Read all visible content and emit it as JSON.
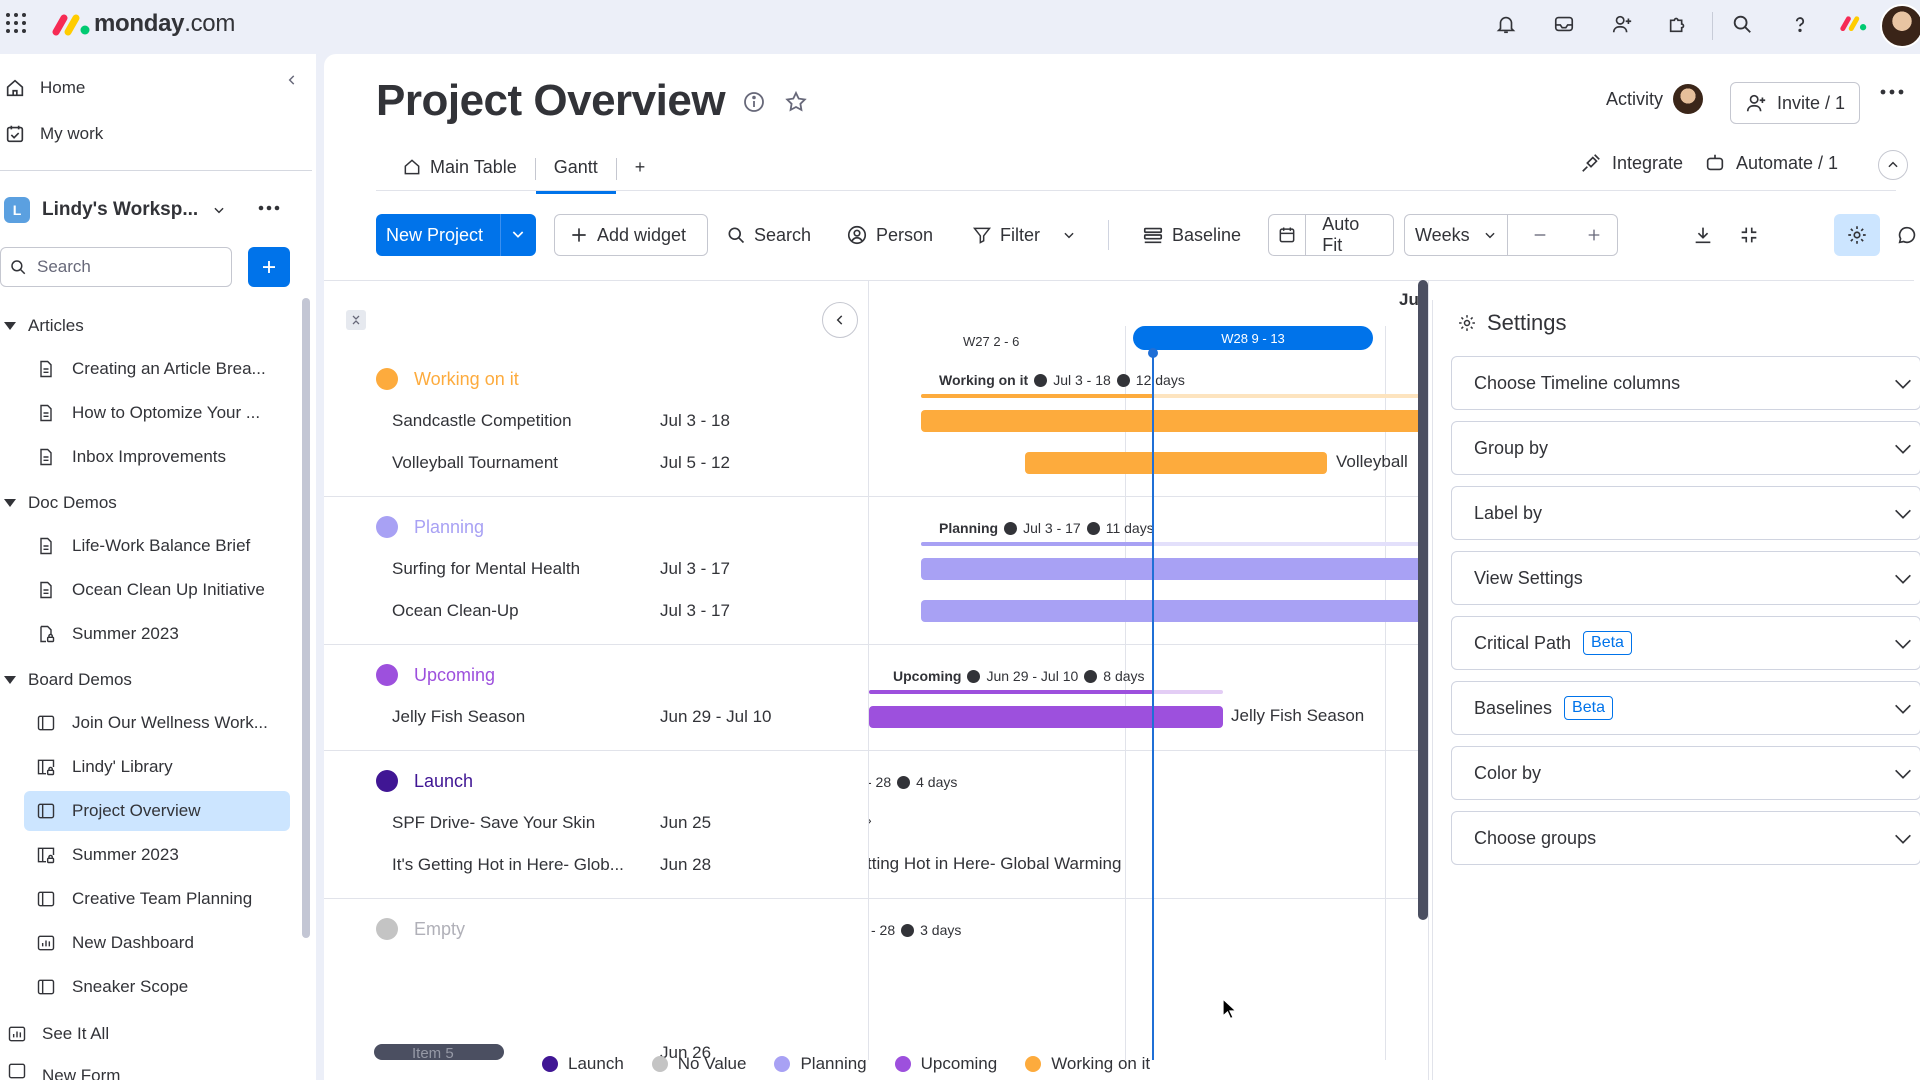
{
  "app": {
    "brand_bold": "monday",
    "brand_thin": ".com"
  },
  "sidebar": {
    "home": "Home",
    "my_work": "My work",
    "workspace": {
      "badge": "L",
      "name": "Lindy's Worksp..."
    },
    "search_placeholder": "Search",
    "folders": [
      {
        "label": "Articles",
        "items": [
          {
            "label": "Creating an Article Brea...",
            "icon": "doc-icon"
          },
          {
            "label": "How to Optomize Your ...",
            "icon": "doc-icon"
          },
          {
            "label": "Inbox Improvements",
            "icon": "doc-icon"
          }
        ]
      },
      {
        "label": "Doc Demos",
        "items": [
          {
            "label": "Life-Work Balance Brief",
            "icon": "doc-icon"
          },
          {
            "label": "Ocean Clean Up Initiative",
            "icon": "doc-icon"
          },
          {
            "label": "Summer 2023",
            "icon": "locked-doc-icon"
          }
        ]
      },
      {
        "label": "Board Demos",
        "items": [
          {
            "label": "Join Our Wellness Work...",
            "icon": "board-icon"
          },
          {
            "label": "Lindy' Library",
            "icon": "locked-board-icon"
          },
          {
            "label": "Project Overview",
            "icon": "board-icon",
            "active": true
          },
          {
            "label": "Summer 2023",
            "icon": "locked-board-icon"
          },
          {
            "label": "Creative Team Planning",
            "icon": "board-icon"
          },
          {
            "label": "New Dashboard",
            "icon": "dashboard-icon"
          },
          {
            "label": "Sneaker Scope",
            "icon": "board-icon"
          }
        ]
      }
    ],
    "see_all": "See It All",
    "cut_off": "New Form"
  },
  "header": {
    "title": "Project Overview",
    "activity": "Activity",
    "invite": "Invite / 1",
    "tabs": [
      {
        "label": "Main Table",
        "icon": "home-icon"
      },
      {
        "label": "Gantt",
        "active": true
      }
    ],
    "add_tab": "+",
    "integrate": "Integrate",
    "automate": "Automate / 1"
  },
  "toolbar": {
    "new_project": "New Project",
    "add_widget": "Add widget",
    "search": "Search",
    "person": "Person",
    "filter": "Filter",
    "baseline": "Baseline",
    "auto_fit": "Auto Fit",
    "scale": "Weeks"
  },
  "gantt": {
    "month_label": "Ju",
    "week_prev": "W27 2 - 6",
    "week_current": "W28 9 - 13",
    "groups": [
      {
        "name": "Working on it",
        "color": "#fdab3d",
        "summary_name": "Working on it",
        "summary_dates": "Jul 3 - 18",
        "summary_duration": "12 days",
        "rows": [
          {
            "name": "Sandcastle Competition",
            "dates": "Jul 3 - 18"
          },
          {
            "name": "Volleyball Tournament",
            "dates": "Jul 5 - 12",
            "bar_label": "Volleyball"
          }
        ]
      },
      {
        "name": "Planning",
        "color": "#a8a1f4",
        "summary_name": "Planning",
        "summary_dates": "Jul 3 - 17",
        "summary_duration": "11 days",
        "rows": [
          {
            "name": "Surfing for Mental Health",
            "dates": "Jul 3 - 17"
          },
          {
            "name": "Ocean Clean-Up",
            "dates": "Jul 3 - 17"
          }
        ]
      },
      {
        "name": "Upcoming",
        "color": "#9d50dd",
        "summary_name": "Upcoming",
        "summary_dates": "Jun 29 - Jul 10",
        "summary_duration": "8 days",
        "rows": [
          {
            "name": "Jelly Fish Season",
            "dates": "Jun 29 - Jul 10",
            "bar_label": "Jelly Fish Season"
          }
        ]
      },
      {
        "name": "Launch",
        "color": "#401694",
        "summary_dates": "- 28",
        "summary_duration": "4 days",
        "rows": [
          {
            "name": "SPF Drive- Save Your Skin",
            "dates": "Jun 25"
          },
          {
            "name": "It's Getting Hot in Here- Glob...",
            "dates": "Jun 28",
            "bar_label": "tting Hot in Here- Global Warming"
          }
        ]
      },
      {
        "name": "Empty",
        "color": "#c4c4c4",
        "summary_dates": "- 28",
        "summary_duration": "3 days",
        "rows": [
          {
            "name": "Item 5",
            "dates": "Jun 26"
          }
        ]
      }
    ],
    "legend": [
      {
        "label": "Launch",
        "color": "#401694"
      },
      {
        "label": "No Value",
        "color": "#c4c4c4"
      },
      {
        "label": "Planning",
        "color": "#a8a1f4"
      },
      {
        "label": "Upcoming",
        "color": "#9d50dd"
      },
      {
        "label": "Working on it",
        "color": "#fdab3d"
      }
    ]
  },
  "settings": {
    "title": "Settings",
    "rows": [
      {
        "label": "Choose Timeline columns"
      },
      {
        "label": "Group by"
      },
      {
        "label": "Label by"
      },
      {
        "label": "View Settings"
      },
      {
        "label": "Critical Path",
        "badge": "Beta"
      },
      {
        "label": "Baselines",
        "badge": "Beta"
      },
      {
        "label": "Color by"
      },
      {
        "label": "Choose groups"
      }
    ]
  }
}
